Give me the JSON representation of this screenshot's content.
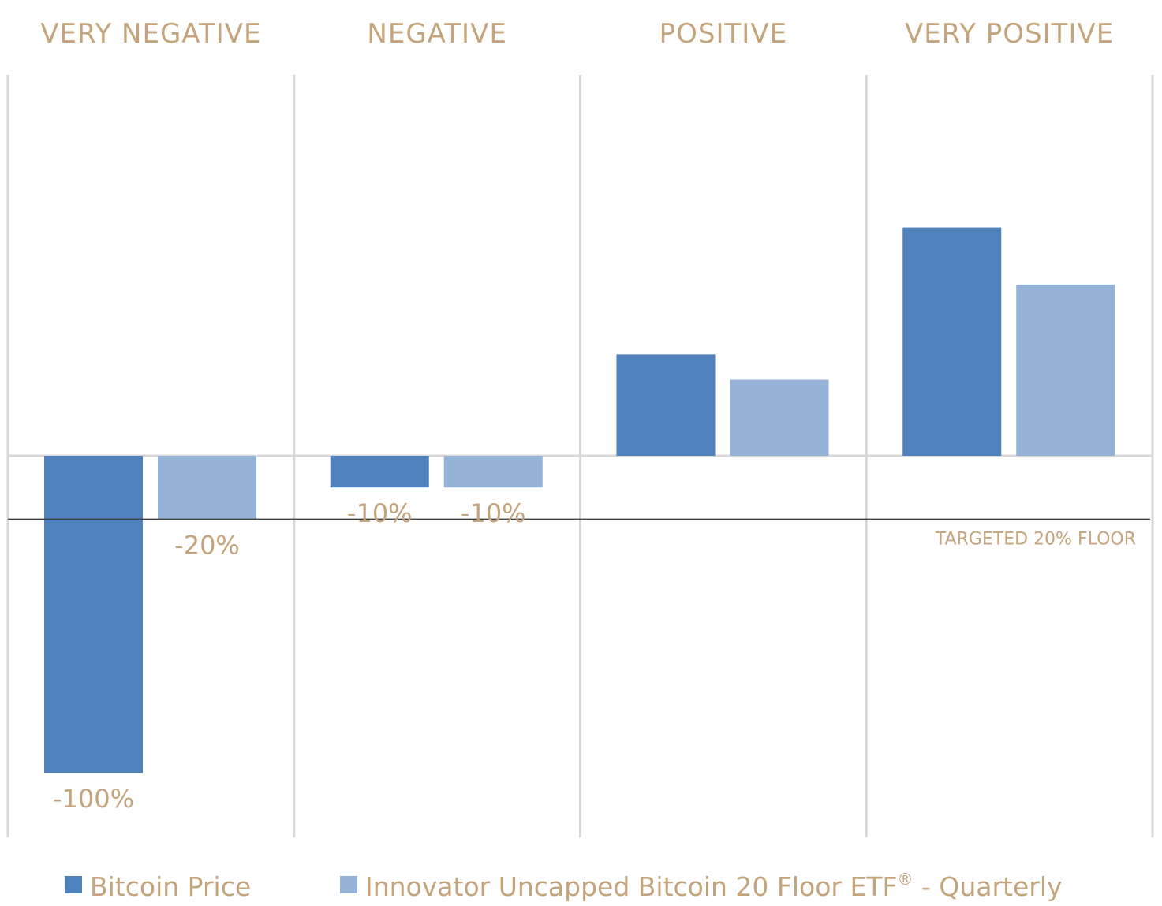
{
  "chart_data": {
    "type": "bar",
    "categories": [
      "VERY NEGATIVE",
      "NEGATIVE",
      "POSITIVE",
      "VERY POSITIVE"
    ],
    "series": [
      {
        "name": "Bitcoin Price",
        "values": [
          -100,
          -10,
          32,
          72
        ],
        "labels": [
          "-100%",
          "-10%",
          "",
          ""
        ],
        "color": "#4f81bd"
      },
      {
        "name": "Innovator Uncapped Bitcoin 20 Floor ETF® - Quarterly",
        "values": [
          -20,
          -10,
          24,
          54
        ],
        "labels": [
          "-20%",
          "-10%",
          "",
          ""
        ],
        "color": "#95b3d7"
      }
    ],
    "reference_line": {
      "value": -20,
      "label": "TARGETED 20% FLOOR"
    },
    "ylim": [
      -120,
      120
    ],
    "grid": false,
    "legend_position": "bottom"
  },
  "legend": {
    "series0_label": "Bitcoin Price",
    "series1_main": "Innovator Uncapped Bitcoin 20 Floor ETF",
    "series1_sup": "®",
    "series1_suffix": " - Quarterly"
  },
  "colors": {
    "text": "#c4a47c",
    "divider": "#d9d9d9",
    "zero_line": "#d9d9d9",
    "floor_line": "#404040"
  }
}
